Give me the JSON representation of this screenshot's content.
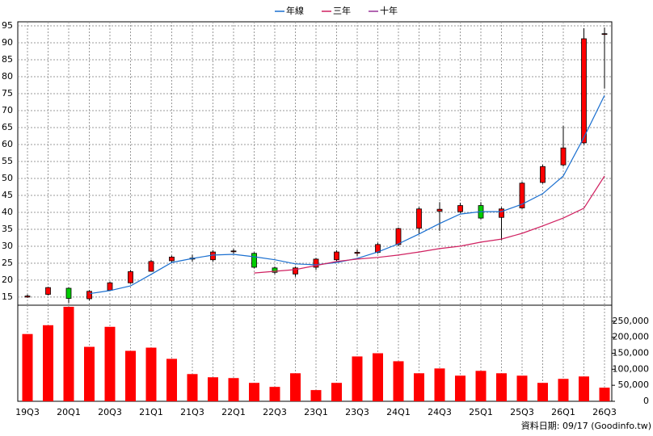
{
  "chart_data": {
    "type": "candlestick",
    "categories": [
      "19Q3",
      null,
      "20Q1",
      null,
      "20Q3",
      null,
      "21Q1",
      null,
      "21Q3",
      null,
      "22Q1",
      null,
      "22Q3",
      null,
      "23Q1",
      null,
      "23Q3",
      null,
      "24Q1",
      null,
      "24Q3",
      null,
      "25Q1",
      null,
      "25Q3",
      null,
      "26Q1",
      null,
      "26Q3"
    ],
    "open": [
      15,
      15.8,
      17.6,
      14.5,
      17,
      19.2,
      22.6,
      25.7,
      26.2,
      26,
      28.4,
      27.9,
      23.6,
      21.8,
      23.8,
      26,
      27.9,
      28.2,
      30.5,
      35.3,
      40.3,
      40.2,
      42,
      38.5,
      41.3,
      48.8,
      54,
      60.5,
      92.5
    ],
    "high": [
      15.8,
      18,
      17.8,
      17,
      19.5,
      23,
      26,
      27.2,
      27.5,
      28.8,
      29.2,
      28.2,
      24,
      24,
      26.5,
      28.8,
      29,
      31,
      35.5,
      41.5,
      43,
      42.8,
      43,
      41.5,
      49,
      54,
      65.5,
      94.3,
      94.5
    ],
    "low": [
      14.8,
      15.5,
      13.3,
      14,
      16.8,
      19,
      22.5,
      25,
      25.5,
      25.5,
      27.8,
      23.5,
      21.8,
      21,
      23,
      25.5,
      27,
      27.8,
      30,
      33.5,
      34.5,
      39.8,
      38,
      31.7,
      41,
      48.5,
      53.5,
      60,
      76.5
    ],
    "close": [
      15.3,
      17.8,
      14.6,
      16.7,
      19.2,
      22.5,
      25.5,
      26.8,
      26.5,
      28.3,
      28.6,
      23.8,
      22.3,
      23.6,
      26.2,
      28.3,
      28.2,
      30.5,
      35.2,
      41,
      40.9,
      42,
      38.3,
      41,
      48.6,
      53.5,
      59,
      91.2,
      92.7
    ],
    "up_color": "#ff0000",
    "down_color": "#00cc00",
    "ylim": [
      12.6,
      96.2
    ],
    "yticks": [
      15,
      20,
      25,
      30,
      35,
      40,
      45,
      50,
      55,
      60,
      65,
      70,
      75,
      80,
      85,
      90,
      95
    ],
    "grid": true,
    "series": [
      {
        "name": "年線",
        "color": "#1a6fd0",
        "values": [
          null,
          null,
          null,
          16,
          16.9,
          18.3,
          21.7,
          25.2,
          26.4,
          27.4,
          27.6,
          26.9,
          26,
          24.8,
          24.5,
          25.2,
          26.4,
          28.3,
          30.7,
          33.6,
          36.7,
          39.5,
          40.2,
          40.2,
          42.4,
          45.5,
          50.7,
          62.1,
          74.5
        ]
      },
      {
        "name": "三年",
        "color": "#d02060",
        "values": [
          null,
          null,
          null,
          null,
          null,
          null,
          null,
          null,
          null,
          null,
          null,
          22.1,
          22.6,
          23.1,
          24.3,
          25.5,
          26.2,
          26.7,
          27.4,
          28.3,
          29.3,
          30,
          31.2,
          32.1,
          33.8,
          36,
          38.3,
          41.2,
          50.7
        ]
      },
      {
        "name": "十年",
        "color": "#993399",
        "values": [
          null,
          null,
          null,
          null,
          null,
          null,
          null,
          null,
          null,
          null,
          null,
          null,
          null,
          null,
          null,
          null,
          null,
          null,
          null,
          null,
          null,
          null,
          null,
          null,
          null,
          null,
          null,
          null,
          null
        ]
      }
    ],
    "volume": {
      "color": "#ff0000",
      "values": [
        210000,
        237500,
        295000,
        170000,
        232500,
        157500,
        167500,
        132500,
        85000,
        75000,
        72500,
        57500,
        45000,
        87500,
        35000,
        57500,
        140000,
        150000,
        125000,
        87500,
        102500,
        80000,
        95000,
        87500,
        80000,
        57500,
        70000,
        77500,
        42500
      ],
      "ylim": [
        0,
        300000
      ],
      "yticks": [
        0,
        {
          "value": 50000,
          "label": "50,000"
        },
        {
          "value": 100000,
          "label": "100,000"
        },
        {
          "value": 150000,
          "label": "150,000"
        },
        {
          "value": 200000,
          "label": "200,000"
        },
        {
          "value": 250000,
          "label": "250,000"
        }
      ]
    },
    "source": "資料日期: 09/17  (Goodinfo.tw)"
  }
}
